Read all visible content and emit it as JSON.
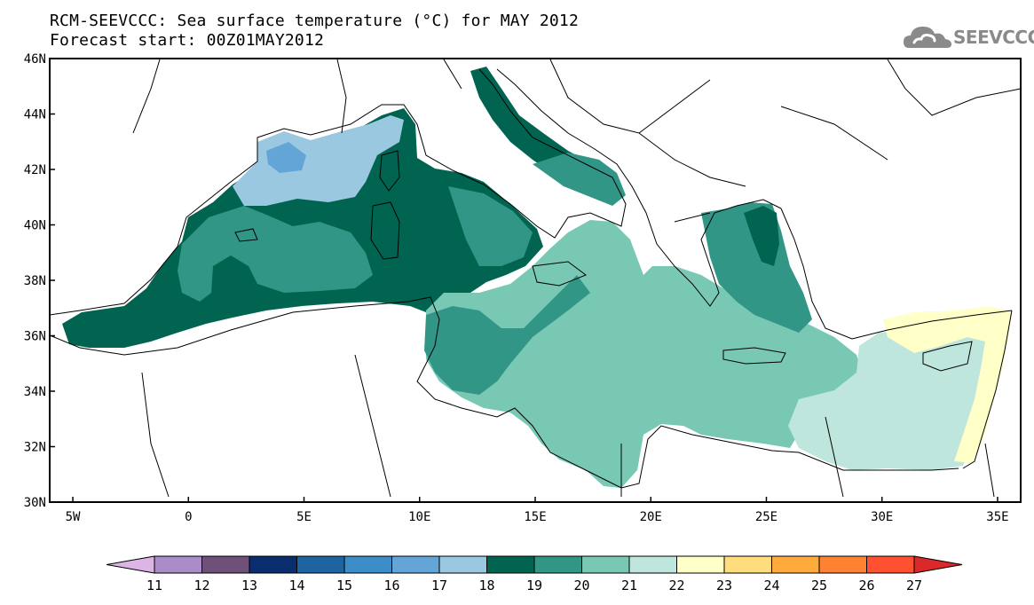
{
  "title": {
    "line1": "RCM-SEEVCCC: Sea surface temperature (°C) for MAY 2012",
    "line2": "Forecast start: 00Z01MAY2012"
  },
  "logo": {
    "text": "SEEVCCC",
    "icon": "cloud-icon",
    "color": "#8a8a8a"
  },
  "map": {
    "lon_range": [
      -6,
      36
    ],
    "lat_range": [
      30,
      46
    ],
    "lon_ticks": [
      {
        "value": -5,
        "label": "5W"
      },
      {
        "value": 0,
        "label": "0"
      },
      {
        "value": 5,
        "label": "5E"
      },
      {
        "value": 10,
        "label": "10E"
      },
      {
        "value": 15,
        "label": "15E"
      },
      {
        "value": 20,
        "label": "20E"
      },
      {
        "value": 25,
        "label": "25E"
      },
      {
        "value": 30,
        "label": "30E"
      },
      {
        "value": 35,
        "label": "35E"
      }
    ],
    "lat_ticks": [
      {
        "value": 30,
        "label": "30N"
      },
      {
        "value": 32,
        "label": "32N"
      },
      {
        "value": 34,
        "label": "34N"
      },
      {
        "value": 36,
        "label": "36N"
      },
      {
        "value": 38,
        "label": "38N"
      },
      {
        "value": 40,
        "label": "40N"
      },
      {
        "value": 42,
        "label": "42N"
      },
      {
        "value": 44,
        "label": "44N"
      },
      {
        "value": 46,
        "label": "46N"
      }
    ],
    "background": "#ffffff",
    "border_color": "#000000"
  },
  "colorbar": {
    "labels": [
      "11",
      "12",
      "13",
      "14",
      "15",
      "16",
      "17",
      "18",
      "19",
      "20",
      "21",
      "22",
      "23",
      "24",
      "25",
      "26",
      "27"
    ],
    "under_color": "#dcb4e6",
    "over_color": "#dc2828",
    "colors": [
      "#aa8cc8",
      "#6e5078",
      "#0a2d6e",
      "#1e64a0",
      "#3c8cc8",
      "#64a5d7",
      "#9bc8e1",
      "#006450",
      "#329687",
      "#78c8b4",
      "#bee6dc",
      "#ffffc8",
      "#ffdc7d",
      "#ffaa3c",
      "#ff8232",
      "#ff5032"
    ]
  }
}
